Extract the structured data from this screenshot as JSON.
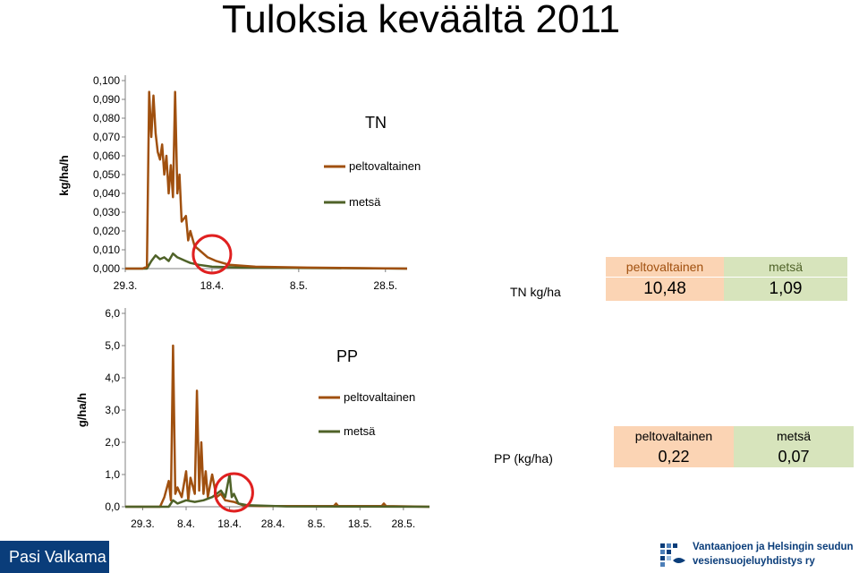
{
  "page": {
    "title": "Tuloksia keväältä 2011",
    "author": "Pasi Valkama",
    "logo_line1": "Vantaanjoen ja Helsingin seudun",
    "logo_line2": "vesiensuojeluyhdistys ry"
  },
  "colors": {
    "peltovaltainen": "#a0500f",
    "metsa": "#4f6228",
    "peltovaltainen_bg": "#fbd4b4",
    "metsa_bg": "#d7e4bc",
    "circle": "#e02020",
    "footer_bg": "#0a3d7a"
  },
  "tables": [
    {
      "row_label": "TN kg/ha",
      "headers": [
        "peltovaltainen",
        "metsä"
      ],
      "values": [
        "10,48",
        "1,09"
      ]
    },
    {
      "row_label": "PP (kg/ha)",
      "headers": [
        "peltovaltainen",
        "metsä"
      ],
      "values": [
        "0,22",
        "0,07"
      ]
    }
  ],
  "chart_data": [
    {
      "type": "line",
      "title": "TN",
      "ylabel": "kg/ha/h",
      "ylim": [
        0,
        0.1
      ],
      "yticks": [
        "0,000",
        "0,010",
        "0,020",
        "0,030",
        "0,040",
        "0,050",
        "0,060",
        "0,070",
        "0,080",
        "0,090",
        "0,100"
      ],
      "xticks": [
        "29.3.",
        "18.4.",
        "8.5.",
        "28.5."
      ],
      "x_range": [
        "2011-03-29",
        "2011-06-02"
      ],
      "highlight": {
        "x": "2011-04-18",
        "note": "red circle"
      },
      "series": [
        {
          "name": "peltovaltainen",
          "color": "#a0500f",
          "points": [
            [
              "2011-03-29",
              0
            ],
            [
              "2011-04-02",
              0
            ],
            [
              "2011-04-03",
              0.001
            ],
            [
              "2011-04-03.5",
              0.094
            ],
            [
              "2011-04-04",
              0.07
            ],
            [
              "2011-04-04.5",
              0.092
            ],
            [
              "2011-04-05",
              0.072
            ],
            [
              "2011-04-05.5",
              0.062
            ],
            [
              "2011-04-06",
              0.058
            ],
            [
              "2011-04-06.5",
              0.066
            ],
            [
              "2011-04-07",
              0.05
            ],
            [
              "2011-04-07.5",
              0.06
            ],
            [
              "2011-04-08",
              0.04
            ],
            [
              "2011-04-08.5",
              0.055
            ],
            [
              "2011-04-09",
              0.038
            ],
            [
              "2011-04-09.5",
              0.094
            ],
            [
              "2011-04-10",
              0.04
            ],
            [
              "2011-04-10.5",
              0.05
            ],
            [
              "2011-04-11",
              0.025
            ],
            [
              "2011-04-12",
              0.028
            ],
            [
              "2011-04-12.5",
              0.015
            ],
            [
              "2011-04-13",
              0.02
            ],
            [
              "2011-04-14",
              0.012
            ],
            [
              "2011-04-15",
              0.01
            ],
            [
              "2011-04-17",
              0.006
            ],
            [
              "2011-04-19",
              0.004
            ],
            [
              "2011-04-22",
              0.002
            ],
            [
              "2011-04-28",
              0.001
            ],
            [
              "2011-05-10",
              0.0005
            ],
            [
              "2011-06-02",
              0
            ]
          ]
        },
        {
          "name": "metsä",
          "color": "#4f6228",
          "points": [
            [
              "2011-03-29",
              0
            ],
            [
              "2011-04-03",
              0
            ],
            [
              "2011-04-04",
              0.004
            ],
            [
              "2011-04-05",
              0.007
            ],
            [
              "2011-04-06",
              0.005
            ],
            [
              "2011-04-07",
              0.006
            ],
            [
              "2011-04-08",
              0.004
            ],
            [
              "2011-04-09",
              0.008
            ],
            [
              "2011-04-10",
              0.006
            ],
            [
              "2011-04-11",
              0.005
            ],
            [
              "2011-04-12",
              0.004
            ],
            [
              "2011-04-13",
              0.003
            ],
            [
              "2011-04-15",
              0.002
            ],
            [
              "2011-04-18",
              0.001
            ],
            [
              "2011-04-25",
              0.0005
            ],
            [
              "2011-06-02",
              0
            ]
          ]
        }
      ]
    },
    {
      "type": "line",
      "title": "PP",
      "ylabel": "g/ha/h",
      "ylim": [
        0,
        6
      ],
      "yticks": [
        "0,0",
        "1,0",
        "2,0",
        "3,0",
        "4,0",
        "5,0",
        "6,0"
      ],
      "xticks": [
        "29.3.",
        "8.4.",
        "18.4.",
        "28.4.",
        "8.5.",
        "18.5.",
        "28.5."
      ],
      "x_range": [
        "2011-03-25",
        "2011-06-03"
      ],
      "highlight": {
        "x": "2011-04-19",
        "note": "red circle"
      },
      "series": [
        {
          "name": "peltovaltainen",
          "color": "#a0500f",
          "points": [
            [
              "2011-03-25",
              0
            ],
            [
              "2011-04-02",
              0
            ],
            [
              "2011-04-03",
              0.3
            ],
            [
              "2011-04-04",
              0.8
            ],
            [
              "2011-04-04.5",
              0.2
            ],
            [
              "2011-04-05",
              5.0
            ],
            [
              "2011-04-05.5",
              0.4
            ],
            [
              "2011-04-06",
              0.6
            ],
            [
              "2011-04-07",
              0.3
            ],
            [
              "2011-04-08",
              1.1
            ],
            [
              "2011-04-08.5",
              0.2
            ],
            [
              "2011-04-09",
              0.9
            ],
            [
              "2011-04-10",
              0.4
            ],
            [
              "2011-04-10.5",
              3.6
            ],
            [
              "2011-04-11",
              0.5
            ],
            [
              "2011-04-11.5",
              2.0
            ],
            [
              "2011-04-12",
              0.4
            ],
            [
              "2011-04-12.5",
              1.1
            ],
            [
              "2011-04-13",
              0.3
            ],
            [
              "2011-04-14",
              1.0
            ],
            [
              "2011-04-15",
              0.3
            ],
            [
              "2011-04-16",
              0.4
            ],
            [
              "2011-04-17",
              0.2
            ],
            [
              "2011-04-19",
              0.15
            ],
            [
              "2011-04-21",
              0.05
            ],
            [
              "2011-04-25",
              0.02
            ],
            [
              "2011-05-12",
              0.02
            ],
            [
              "2011-05-12.5",
              0.1
            ],
            [
              "2011-05-13",
              0.02
            ],
            [
              "2011-05-23",
              0.02
            ],
            [
              "2011-05-23.5",
              0.1
            ],
            [
              "2011-05-24",
              0.02
            ],
            [
              "2011-06-03",
              0
            ]
          ]
        },
        {
          "name": "metsä",
          "color": "#4f6228",
          "points": [
            [
              "2011-03-25",
              0
            ],
            [
              "2011-04-04",
              0
            ],
            [
              "2011-04-05",
              0.2
            ],
            [
              "2011-04-06",
              0.1
            ],
            [
              "2011-04-08",
              0.2
            ],
            [
              "2011-04-10",
              0.15
            ],
            [
              "2011-04-12",
              0.2
            ],
            [
              "2011-04-14",
              0.3
            ],
            [
              "2011-04-16",
              0.5
            ],
            [
              "2011-04-17",
              0.3
            ],
            [
              "2011-04-18",
              1.0
            ],
            [
              "2011-04-18.5",
              0.3
            ],
            [
              "2011-04-19",
              0.4
            ],
            [
              "2011-04-20",
              0.1
            ],
            [
              "2011-04-22",
              0.05
            ],
            [
              "2011-05-01",
              0.01
            ],
            [
              "2011-06-03",
              0
            ]
          ]
        }
      ]
    }
  ]
}
